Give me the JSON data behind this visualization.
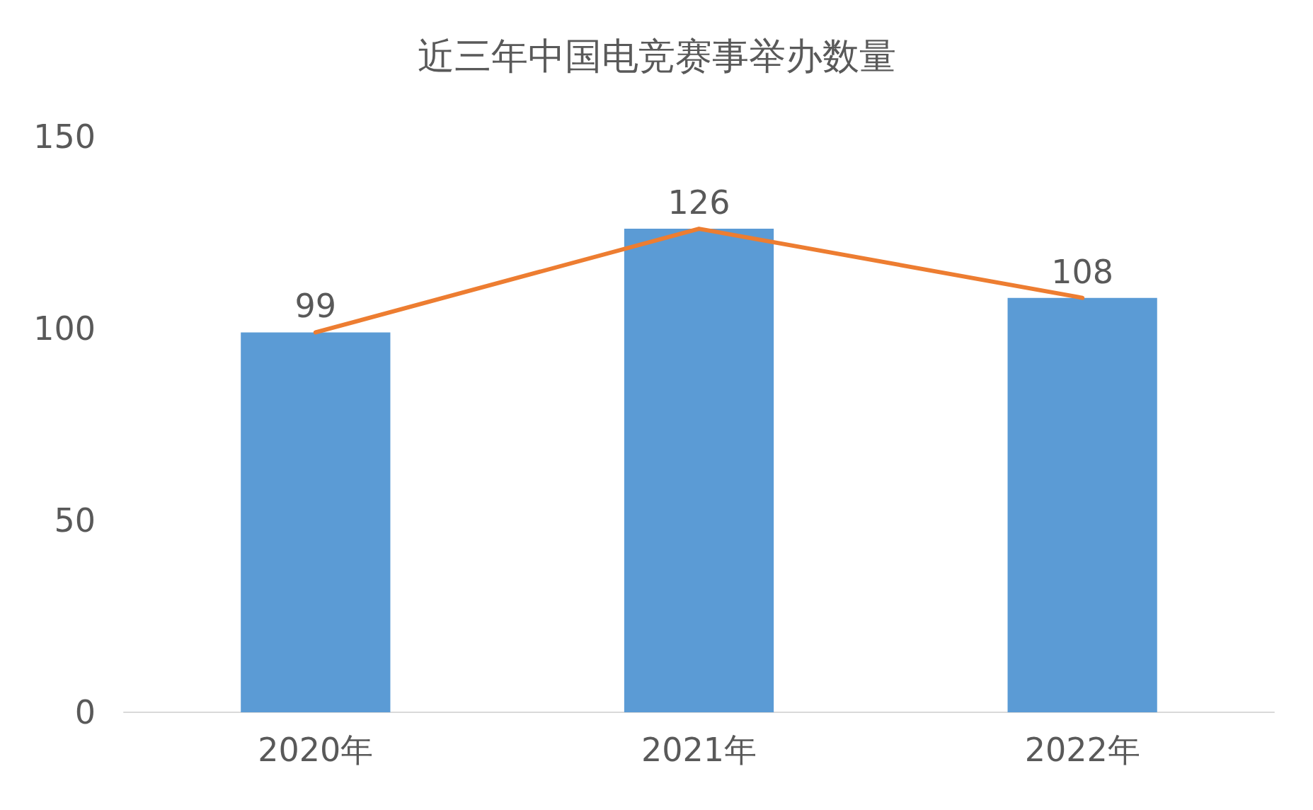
{
  "chart_data": {
    "type": "bar",
    "title": "近三年中国电竞赛事举办数量",
    "categories": [
      "2020年",
      "2021年",
      "2022年"
    ],
    "series": [
      {
        "color": "#5b9bd5",
        "values": [
          99,
          126,
          108
        ]
      },
      {
        "type": "line",
        "color": "#ed7d31",
        "values": [
          99,
          126,
          108
        ],
        "value_labels": [
          "99",
          "126",
          "108"
        ]
      }
    ],
    "ylim": [
      0,
      150
    ],
    "yticks": [
      0,
      50,
      100,
      150
    ],
    "grid": false,
    "marker": "none",
    "line_style": "solid"
  }
}
